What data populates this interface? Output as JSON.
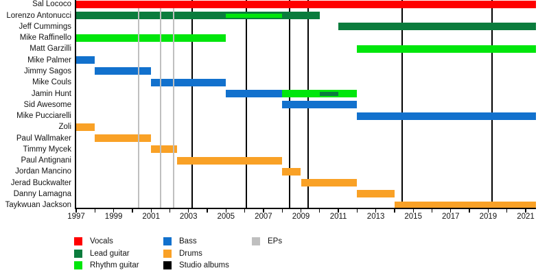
{
  "chart_data": {
    "type": "timeline",
    "title": "",
    "description": "Band members timeline with roles as colored bars and vertical release lines",
    "x_axis": {
      "min_year": 1997,
      "max_year": 2021.55,
      "tick_step_years": 1,
      "label_step_years": 2,
      "tick_labels": [
        "1997",
        "1999",
        "2001",
        "2003",
        "2005",
        "2007",
        "2009",
        "2011",
        "2013",
        "2015",
        "2017",
        "2019",
        "2021"
      ]
    },
    "palette": {
      "Vocals": "#FF0000",
      "Lead guitar": "#0B7C3D",
      "Rhythm guitar": "#00E60C",
      "Bass": "#1271CD",
      "Drums": "#F9A126",
      "Studio albums": "#000000",
      "EPs": "#BFBFBF"
    },
    "members": [
      {
        "name": "Sal Lococo",
        "segments": [
          {
            "role": "Vocals",
            "from": 1997,
            "to": 2021.55
          }
        ]
      },
      {
        "name": "Lorenzo Antonucci",
        "segments": [
          {
            "role": "Lead guitar",
            "from": 1997,
            "to": 2010
          }
        ],
        "overlays": [
          {
            "role": "Rhythm guitar",
            "from": 2005,
            "to": 2008
          }
        ]
      },
      {
        "name": "Jeff Cummings",
        "segments": [
          {
            "role": "Lead guitar",
            "from": 2011,
            "to": 2021.55
          }
        ]
      },
      {
        "name": "Mike Raffinello",
        "segments": [
          {
            "role": "Rhythm guitar",
            "from": 1997,
            "to": 2005
          }
        ]
      },
      {
        "name": "Matt Garzilli",
        "segments": [
          {
            "role": "Rhythm guitar",
            "from": 2012,
            "to": 2021.55
          }
        ]
      },
      {
        "name": "Mike Palmer",
        "segments": [
          {
            "role": "Bass",
            "from": 1997,
            "to": 1998
          }
        ]
      },
      {
        "name": "Jimmy Sagos",
        "segments": [
          {
            "role": "Bass",
            "from": 1998,
            "to": 2001
          }
        ]
      },
      {
        "name": "Mike Couls",
        "segments": [
          {
            "role": "Bass",
            "from": 2001,
            "to": 2005
          }
        ]
      },
      {
        "name": "Jamin Hunt",
        "segments": [
          {
            "role": "Bass",
            "from": 2005,
            "to": 2008
          },
          {
            "role": "Rhythm guitar",
            "from": 2008,
            "to": 2012
          }
        ],
        "overlays": [
          {
            "role": "Lead guitar",
            "from": 2010,
            "to": 2011
          }
        ]
      },
      {
        "name": "Sid Awesome",
        "segments": [
          {
            "role": "Bass",
            "from": 2008,
            "to": 2012
          }
        ]
      },
      {
        "name": "Mike Pucciarelli",
        "segments": [
          {
            "role": "Bass",
            "from": 2012,
            "to": 2021.55
          }
        ]
      },
      {
        "name": "Zoli",
        "segments": [
          {
            "role": "Drums",
            "from": 1997,
            "to": 1998
          }
        ]
      },
      {
        "name": "Paul Wallmaker",
        "segments": [
          {
            "role": "Drums",
            "from": 1998,
            "to": 2001
          }
        ]
      },
      {
        "name": "Timmy Mycek",
        "segments": [
          {
            "role": "Drums",
            "from": 2001,
            "to": 2002.4
          }
        ]
      },
      {
        "name": "Paul Antignani",
        "segments": [
          {
            "role": "Drums",
            "from": 2002.4,
            "to": 2008
          }
        ]
      },
      {
        "name": "Jordan Mancino",
        "segments": [
          {
            "role": "Drums",
            "from": 2008,
            "to": 2009
          }
        ]
      },
      {
        "name": "Jerad Buckwalter",
        "segments": [
          {
            "role": "Drums",
            "from": 2009,
            "to": 2012
          }
        ]
      },
      {
        "name": "Danny Lamagna",
        "segments": [
          {
            "role": "Drums",
            "from": 2012,
            "to": 2014
          }
        ]
      },
      {
        "name": "Taykwuan Jackson",
        "segments": [
          {
            "role": "Drums",
            "from": 2014,
            "to": 2021.55
          }
        ]
      }
    ],
    "event_lines": {
      "studio_albums_years": [
        2003.2,
        2006.1,
        2008.4,
        2009.4,
        2014.4,
        2019.2
      ],
      "ep_years": [
        2000.35,
        2001.5,
        2002.2
      ]
    },
    "legend": {
      "columns": [
        [
          "Vocals",
          "Lead guitar",
          "Rhythm guitar"
        ],
        [
          "Bass",
          "Drums",
          "Studio albums"
        ],
        [
          "EPs"
        ]
      ]
    }
  }
}
